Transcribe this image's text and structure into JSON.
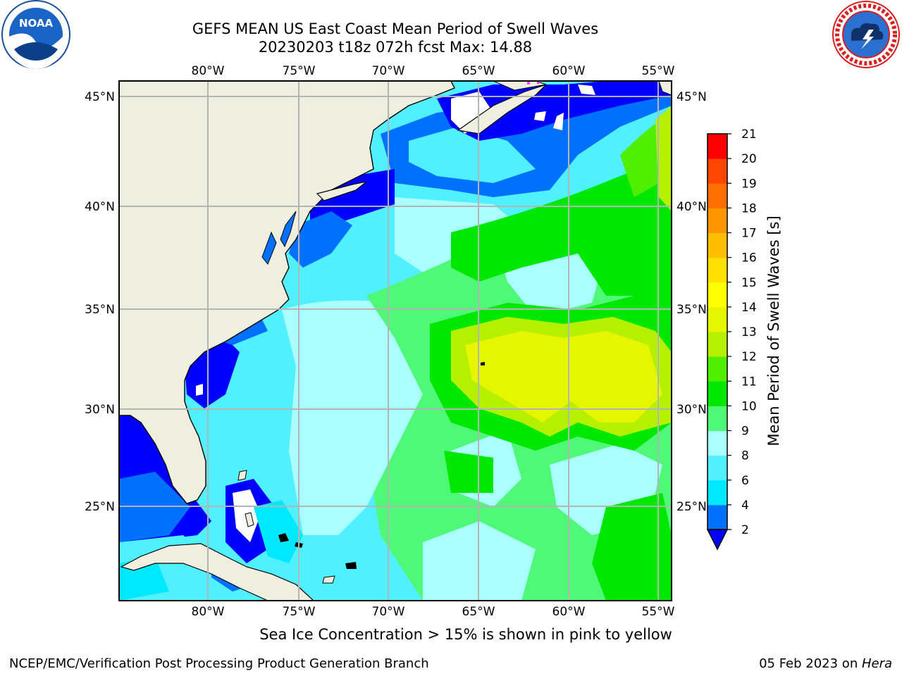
{
  "header": {
    "title_line1": "GEFS MEAN US East Coast Mean Period of Swell Waves",
    "title_line2": "20230203 t18z 072h fcst   Max: 14.88"
  },
  "logos": {
    "left": {
      "name": "noaa-logo",
      "text": "NOAA"
    },
    "right": {
      "name": "nws-logo"
    }
  },
  "map": {
    "lon_ticks": [
      "80°W",
      "75°W",
      "70°W",
      "65°W",
      "60°W",
      "55°W"
    ],
    "lat_ticks": [
      "45°N",
      "40°N",
      "35°N",
      "30°N",
      "25°N"
    ],
    "colors": {
      "land": "#efefdf",
      "grid": "#b4b4b4",
      "coast": "#000000"
    }
  },
  "colorbar": {
    "title": "Mean Period of Swell Waves [s]",
    "labels": [
      "2",
      "4",
      "6",
      "8",
      "9",
      "10",
      "11",
      "12",
      "13",
      "14",
      "15",
      "16",
      "17",
      "18",
      "19",
      "20",
      "21"
    ],
    "colors": [
      "#0070ff",
      "#00e8ff",
      "#50f0ff",
      "#aaffff",
      "#50f878",
      "#00e800",
      "#50ee00",
      "#b4f000",
      "#e6f500",
      "#ffff00",
      "#ffe000",
      "#ffbe00",
      "#ff9600",
      "#ff6e00",
      "#ff4600",
      "#ff0000"
    ],
    "under_color": "#0000ff"
  },
  "footer": {
    "note": "Sea Ice Concentration > 15% is shown in pink to yellow",
    "credit_left": "NCEP/EMC/Verification Post Processing Product Generation Branch",
    "credit_date": "05 Feb 2023 on ",
    "credit_host": "Hera"
  }
}
